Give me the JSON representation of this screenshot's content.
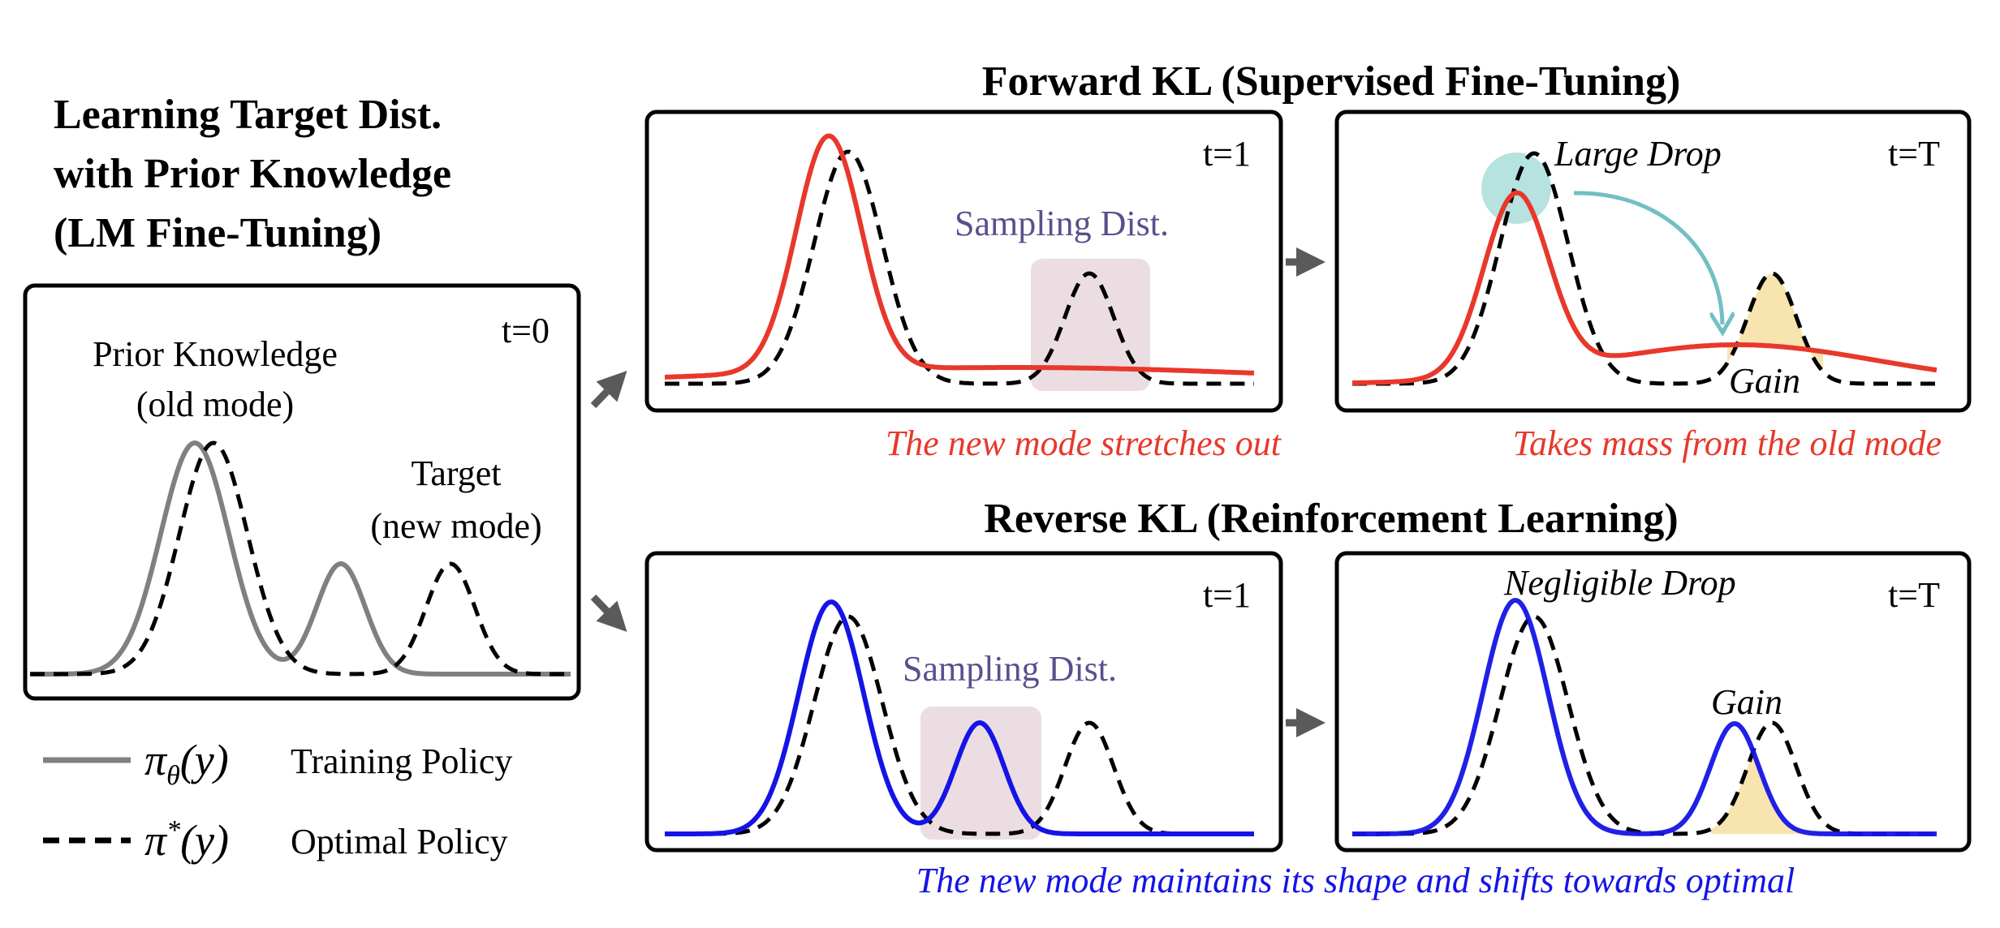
{
  "left": {
    "title_lines": [
      "Learning Target Dist.",
      "with Prior Knowledge",
      "(LM Fine-Tuning)"
    ],
    "panel": {
      "time": "t=0",
      "prior_label": [
        "Prior Knowledge",
        "(old mode)"
      ],
      "target_label": [
        "Target",
        "(new mode)"
      ]
    },
    "legend": [
      {
        "symbol": "π",
        "sub": "θ",
        "arg": "(y)",
        "label": "Training Policy",
        "style": "solid-gray"
      },
      {
        "symbol": "π",
        "sup": "*",
        "arg": "(y)",
        "label": "Optimal Policy",
        "style": "dashed-black"
      }
    ]
  },
  "forward": {
    "header": "Forward KL (Supervised Fine-Tuning)",
    "panel1": {
      "time": "t=1",
      "sampling_label": "Sampling Dist.",
      "caption": "The new mode stretches out"
    },
    "panel2": {
      "time": "t=T",
      "drop_label": "Large Drop",
      "gain_label": "Gain",
      "caption": "Takes mass from the old mode"
    }
  },
  "reverse": {
    "header": "Reverse KL (Reinforcement Learning)",
    "panel1": {
      "time": "t=1",
      "sampling_label": "Sampling Dist."
    },
    "panel2": {
      "time": "t=T",
      "drop_label": "Negligible Drop",
      "gain_label": "Gain"
    },
    "caption": "The new mode maintains its shape and shifts towards optimal"
  },
  "colors": {
    "training_gray": "#808080",
    "forward_red": "#e8382b",
    "reverse_blue": "#1414e6",
    "sampling_text": "#5b4f8e",
    "sampling_box": "#ecdde3",
    "drop_teal": "#8fd3cf",
    "gain_yellow": "#f7e4ae",
    "arrow_gray": "#5a5a5a"
  }
}
